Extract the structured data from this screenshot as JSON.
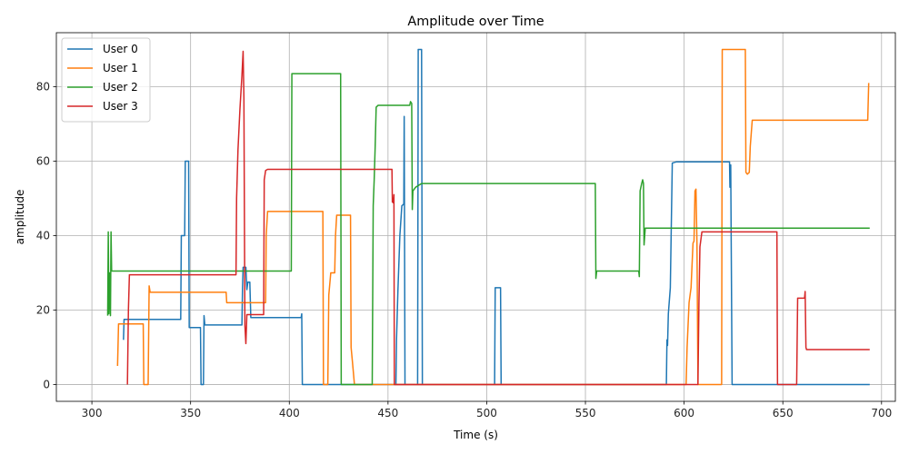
{
  "chart_data": {
    "type": "line",
    "title": "Amplitude over Time",
    "xlabel": "Time (s)",
    "ylabel": "amplitude",
    "xlim": [
      282,
      707
    ],
    "ylim": [
      -4.5,
      94.5
    ],
    "xticks": [
      300,
      350,
      400,
      450,
      500,
      550,
      600,
      650,
      700
    ],
    "yticks": [
      0,
      20,
      40,
      60,
      80
    ],
    "grid": true,
    "legend_position": "top-left",
    "series": [
      {
        "name": "User 0",
        "color": "#1f77b4",
        "points": [
          [
            316,
            12
          ],
          [
            316.3,
            17.5
          ],
          [
            345,
            17.5
          ],
          [
            345.3,
            40
          ],
          [
            347,
            40
          ],
          [
            347.3,
            60
          ],
          [
            349,
            60
          ],
          [
            349.3,
            15.3
          ],
          [
            355,
            15.3
          ],
          [
            355.3,
            0
          ],
          [
            356.5,
            0
          ],
          [
            356.8,
            18.5
          ],
          [
            357.2,
            16
          ],
          [
            376,
            16
          ],
          [
            376.3,
            26
          ],
          [
            376.6,
            31.5
          ],
          [
            378,
            31.5
          ],
          [
            378.5,
            25.5
          ],
          [
            379,
            27.5
          ],
          [
            380,
            27.5
          ],
          [
            380.5,
            18
          ],
          [
            406,
            18
          ],
          [
            406.3,
            19
          ],
          [
            406.6,
            0
          ],
          [
            504,
            0
          ],
          [
            504.3,
            26
          ],
          [
            507,
            26
          ],
          [
            507.3,
            0
          ],
          [
            454,
            0
          ],
          [
            454.3,
            12
          ],
          [
            455,
            25
          ],
          [
            456,
            40
          ],
          [
            457,
            48
          ],
          [
            458,
            48.5
          ],
          [
            458.2,
            72
          ],
          [
            458.6,
            0
          ],
          [
            465,
            0
          ],
          [
            465.3,
            90
          ],
          [
            467,
            90
          ],
          [
            467.4,
            0
          ],
          [
            591,
            0
          ],
          [
            591.3,
            12
          ],
          [
            591.6,
            10.5
          ],
          [
            592,
            19
          ],
          [
            593,
            26
          ],
          [
            594,
            59.5
          ],
          [
            596,
            59.8
          ],
          [
            623,
            59.8
          ],
          [
            623.2,
            53
          ],
          [
            623.6,
            59
          ],
          [
            624.3,
            0
          ],
          [
            694,
            0
          ]
        ]
      },
      {
        "name": "User 1",
        "color": "#ff7f0e",
        "points": [
          [
            313,
            5
          ],
          [
            313.5,
            16.3
          ],
          [
            326,
            16.3
          ],
          [
            326.3,
            0
          ],
          [
            328.5,
            0
          ],
          [
            329,
            26.5
          ],
          [
            329.5,
            24.8
          ],
          [
            368,
            24.8
          ],
          [
            368.3,
            22
          ],
          [
            388,
            22
          ],
          [
            388.3,
            40
          ],
          [
            389,
            46.5
          ],
          [
            417,
            46.5
          ],
          [
            417.3,
            0
          ],
          [
            419.5,
            0
          ],
          [
            420,
            24
          ],
          [
            421,
            30
          ],
          [
            423,
            30
          ],
          [
            423.4,
            40
          ],
          [
            424,
            45.5
          ],
          [
            431,
            45.5
          ],
          [
            431.3,
            10
          ],
          [
            432,
            6
          ],
          [
            433,
            0
          ],
          [
            601,
            0
          ],
          [
            601.5,
            10
          ],
          [
            602.5,
            22
          ],
          [
            603.5,
            26
          ],
          [
            604.5,
            38
          ],
          [
            605,
            38.5
          ],
          [
            605.5,
            52
          ],
          [
            606,
            52.5
          ],
          [
            606.5,
            38
          ],
          [
            607,
            0
          ],
          [
            619,
            0
          ],
          [
            619.3,
            90
          ],
          [
            631,
            90
          ],
          [
            631.3,
            57
          ],
          [
            632,
            56.5
          ],
          [
            633,
            57
          ],
          [
            633.5,
            64
          ],
          [
            634.5,
            71
          ],
          [
            693,
            71
          ],
          [
            693.5,
            81
          ]
        ]
      },
      {
        "name": "User 2",
        "color": "#2ca02c",
        "points": [
          [
            308,
            18.5
          ],
          [
            308.3,
            41
          ],
          [
            308.6,
            19
          ],
          [
            309,
            30
          ],
          [
            309.4,
            18.5
          ],
          [
            309.7,
            41
          ],
          [
            310,
            30.5
          ],
          [
            401,
            30.5
          ],
          [
            401.3,
            83.5
          ],
          [
            426,
            83.5
          ],
          [
            426.3,
            0
          ],
          [
            442,
            0
          ],
          [
            442.5,
            48
          ],
          [
            443,
            55
          ],
          [
            443.5,
            64
          ],
          [
            444,
            74.5
          ],
          [
            445,
            75
          ],
          [
            461,
            75
          ],
          [
            461.4,
            76
          ],
          [
            462,
            75.5
          ],
          [
            462.3,
            47
          ],
          [
            462.6,
            52
          ],
          [
            464,
            53
          ],
          [
            467,
            54
          ],
          [
            555,
            54
          ],
          [
            555.3,
            28.5
          ],
          [
            555.7,
            30.5
          ],
          [
            577,
            30.5
          ],
          [
            577.3,
            29
          ],
          [
            577.7,
            52
          ],
          [
            578.5,
            54
          ],
          [
            579,
            55
          ],
          [
            579.4,
            54
          ],
          [
            579.7,
            37.5
          ],
          [
            580.3,
            42
          ],
          [
            694,
            42
          ]
        ]
      },
      {
        "name": "User 3",
        "color": "#d62728",
        "points": [
          [
            318,
            0
          ],
          [
            318.5,
            20
          ],
          [
            319,
            29.5
          ],
          [
            373,
            29.5
          ],
          [
            373.3,
            50
          ],
          [
            374,
            63
          ],
          [
            375,
            74
          ],
          [
            376,
            83
          ],
          [
            376.6,
            89.5
          ],
          [
            377,
            77
          ],
          [
            377.5,
            16
          ],
          [
            378,
            11
          ],
          [
            378.5,
            18.8
          ],
          [
            387,
            18.8
          ],
          [
            387.3,
            55
          ],
          [
            388,
            57.5
          ],
          [
            389,
            57.8
          ],
          [
            452,
            57.8
          ],
          [
            452.2,
            49
          ],
          [
            452.5,
            50
          ],
          [
            452.7,
            48.8
          ],
          [
            453,
            51
          ],
          [
            453.2,
            0
          ],
          [
            607,
            0
          ],
          [
            607.5,
            22
          ],
          [
            608,
            37
          ],
          [
            609,
            41
          ],
          [
            647,
            41
          ],
          [
            647.3,
            0
          ],
          [
            657,
            0
          ],
          [
            657.5,
            23.2
          ],
          [
            661,
            23.2
          ],
          [
            661.3,
            25
          ],
          [
            661.7,
            10
          ],
          [
            662,
            9.4
          ],
          [
            694,
            9.4
          ]
        ]
      }
    ]
  }
}
